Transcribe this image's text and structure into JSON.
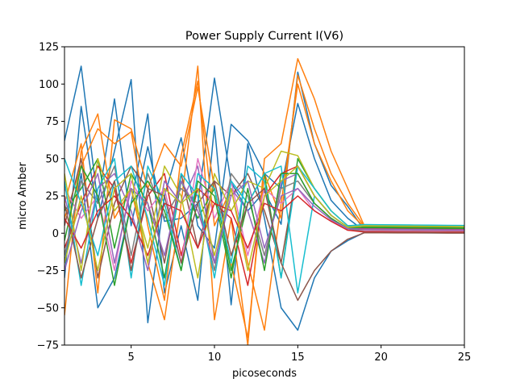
{
  "chart_data": {
    "type": "line",
    "title": "Power Supply Current I(V6)",
    "xlabel": "picoseconds",
    "ylabel": "micro Amber",
    "xlim": [
      1,
      25
    ],
    "ylim": [
      -75,
      125
    ],
    "xticks": [
      5,
      10,
      15,
      20,
      25
    ],
    "yticks": [
      -75,
      -50,
      -25,
      0,
      25,
      50,
      75,
      100,
      125
    ],
    "grid": false,
    "legend": "none",
    "x": [
      1,
      2,
      3,
      4,
      5,
      6,
      7,
      8,
      9,
      10,
      11,
      12,
      13,
      14,
      15,
      16,
      17,
      18,
      19,
      20,
      21,
      22,
      23,
      24,
      25
    ],
    "color_cycle": [
      "#1f77b4",
      "#ff7f0e",
      "#2ca02c",
      "#d62728",
      "#9467bd",
      "#8c564b",
      "#e377c2",
      "#7f7f7f",
      "#bcbd22",
      "#17becf"
    ],
    "series": [
      {
        "color": "#1f77b4",
        "values": [
          62,
          112,
          20,
          90,
          5,
          58,
          8,
          10,
          20,
          104,
          34,
          15,
          28,
          6,
          108,
          60,
          32,
          18,
          2,
          1.5,
          1.4,
          1.3,
          1.2,
          1.1,
          1.0
        ]
      },
      {
        "color": "#1f77b4",
        "values": [
          -30,
          85,
          10,
          55,
          103,
          -60,
          25,
          64,
          5,
          -10,
          73,
          62,
          40,
          30,
          87,
          50,
          22,
          10,
          1.5,
          1.4,
          1.3,
          1.2,
          1.1,
          1.0,
          0.9
        ]
      },
      {
        "color": "#1f77b4",
        "values": [
          -20,
          40,
          -50,
          -30,
          20,
          80,
          -40,
          5,
          -45,
          72,
          -48,
          60,
          10,
          -50,
          -65,
          -30,
          -12,
          -5,
          0.5,
          0.4,
          0.3,
          0.3,
          0.2,
          0.2,
          0.2
        ]
      },
      {
        "color": "#ff7f0e",
        "values": [
          -55,
          55,
          80,
          10,
          30,
          -20,
          -58,
          20,
          112,
          -58,
          10,
          -75,
          50,
          60,
          117,
          90,
          55,
          30,
          4.8,
          4.6,
          4.4,
          4.2,
          4.0,
          3.8,
          3.6
        ]
      },
      {
        "color": "#ff7f0e",
        "values": [
          20,
          60,
          -40,
          76,
          70,
          30,
          60,
          45,
          98,
          30,
          -20,
          -70,
          40,
          10,
          106,
          70,
          40,
          20,
          4.5,
          4.3,
          4.1,
          3.9,
          3.7,
          3.5,
          3.3
        ]
      },
      {
        "color": "#ff7f0e",
        "values": [
          10,
          45,
          70,
          60,
          68,
          5,
          -45,
          52,
          102,
          5,
          30,
          -20,
          -65,
          20,
          100,
          60,
          35,
          15,
          4.0,
          3.8,
          3.6,
          3.4,
          3.2,
          3.0,
          2.8
        ]
      },
      {
        "color": "#2ca02c",
        "values": [
          15,
          30,
          50,
          -10,
          40,
          20,
          -30,
          35,
          10,
          30,
          -25,
          20,
          40,
          -30,
          50,
          30,
          15,
          5,
          3.5,
          3.4,
          3.3,
          3.2,
          3.1,
          3.0,
          2.9
        ]
      },
      {
        "color": "#d62728",
        "values": [
          -10,
          20,
          45,
          30,
          -20,
          25,
          40,
          -15,
          30,
          20,
          10,
          -35,
          25,
          40,
          45,
          25,
          12,
          4,
          3.0,
          2.9,
          2.8,
          2.7,
          2.6,
          2.5,
          2.4
        ]
      },
      {
        "color": "#9467bd",
        "values": [
          25,
          -20,
          30,
          40,
          15,
          -25,
          35,
          20,
          45,
          -20,
          30,
          15,
          -20,
          35,
          40,
          20,
          10,
          3,
          2.5,
          2.4,
          2.3,
          2.2,
          2.1,
          2.0,
          1.9
        ]
      },
      {
        "color": "#8c564b",
        "values": [
          5,
          50,
          -30,
          20,
          45,
          30,
          -20,
          40,
          -10,
          35,
          25,
          40,
          15,
          -20,
          45,
          25,
          12,
          4,
          2.0,
          1.9,
          1.8,
          1.7,
          1.6,
          1.5,
          1.4
        ]
      },
      {
        "color": "#e377c2",
        "values": [
          30,
          10,
          25,
          -25,
          35,
          15,
          30,
          -20,
          50,
          10,
          35,
          -15,
          30,
          20,
          30,
          15,
          8,
          2,
          1.8,
          1.7,
          1.6,
          1.5,
          1.4,
          1.3,
          1.2
        ]
      },
      {
        "color": "#7f7f7f",
        "values": [
          -15,
          35,
          20,
          45,
          -15,
          40,
          10,
          30,
          20,
          -25,
          40,
          25,
          -15,
          30,
          35,
          20,
          10,
          3,
          1.2,
          1.1,
          1.0,
          1.0,
          0.9,
          0.9,
          0.8
        ]
      },
      {
        "color": "#bcbd22",
        "values": [
          40,
          -25,
          50,
          15,
          30,
          -10,
          45,
          25,
          -30,
          40,
          15,
          35,
          30,
          55,
          52,
          30,
          15,
          5,
          5.5,
          5.4,
          5.3,
          5.2,
          5.1,
          5.0,
          4.9
        ]
      },
      {
        "color": "#17becf",
        "values": [
          35,
          -35,
          30,
          50,
          -30,
          45,
          20,
          -25,
          40,
          30,
          -20,
          45,
          35,
          -30,
          45,
          30,
          15,
          5,
          5.8,
          5.7,
          5.6,
          5.5,
          5.4,
          5.3,
          5.2
        ]
      },
      {
        "color": "#17becf",
        "values": [
          50,
          20,
          -15,
          35,
          45,
          10,
          -35,
          40,
          25,
          -30,
          35,
          20,
          40,
          45,
          -40,
          25,
          12,
          4,
          5.2,
          5.1,
          5.0,
          4.9,
          4.8,
          4.7,
          4.6
        ]
      },
      {
        "color": "#2ca02c",
        "values": [
          -5,
          45,
          25,
          -35,
          20,
          35,
          15,
          -25,
          35,
          25,
          -30,
          30,
          -25,
          40,
          40,
          20,
          10,
          3,
          4.2,
          4.1,
          4.0,
          3.9,
          3.8,
          3.7,
          3.6
        ]
      },
      {
        "color": "#d62728",
        "values": [
          10,
          -10,
          15,
          25,
          10,
          -15,
          20,
          15,
          -10,
          20,
          15,
          -10,
          20,
          15,
          25,
          15,
          8,
          2,
          0.8,
          0.8,
          0.7,
          0.7,
          0.6,
          0.6,
          0.6
        ]
      },
      {
        "color": "#9467bd",
        "values": [
          -25,
          15,
          40,
          -20,
          30,
          20,
          -15,
          35,
          15,
          -20,
          25,
          35,
          -10,
          25,
          30,
          18,
          9,
          3,
          2.8,
          2.7,
          2.6,
          2.5,
          2.4,
          2.3,
          2.2
        ]
      },
      {
        "color": "#8c564b",
        "values": [
          20,
          -30,
          10,
          35,
          -25,
          30,
          25,
          -20,
          20,
          35,
          -15,
          20,
          30,
          -20,
          -45,
          -25,
          -12,
          -4,
          0.3,
          0.3,
          0.2,
          0.2,
          0.2,
          0.1,
          0.1
        ]
      },
      {
        "color": "#bcbd22",
        "values": [
          -20,
          25,
          -25,
          30,
          40,
          -20,
          30,
          20,
          30,
          -15,
          30,
          -25,
          25,
          35,
          45,
          25,
          12,
          4,
          5.0,
          4.9,
          4.8,
          4.7,
          4.6,
          4.5,
          4.4
        ]
      }
    ]
  }
}
